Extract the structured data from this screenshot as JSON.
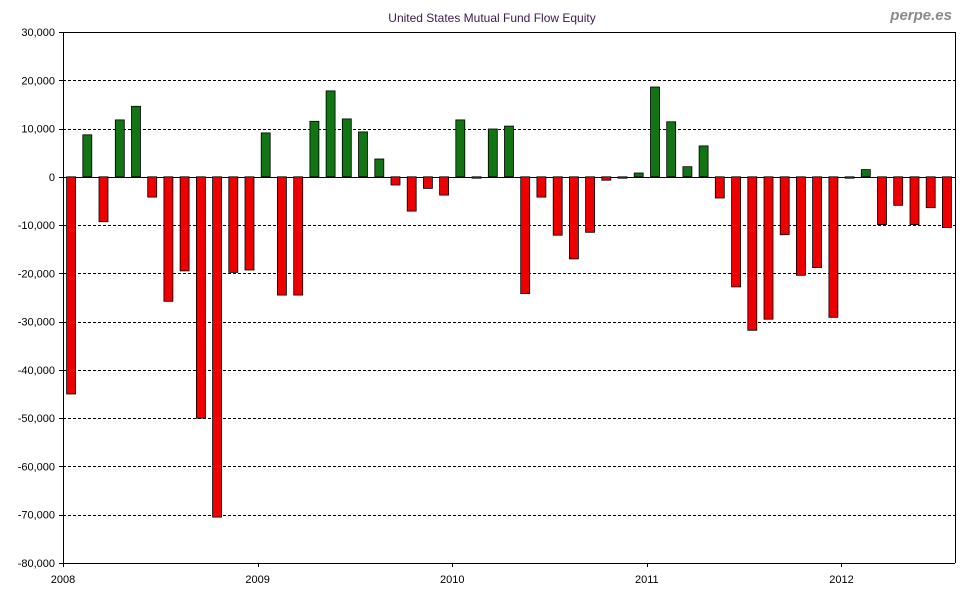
{
  "colors": {
    "positive": "#127412",
    "negative": "#ef0000",
    "title": "#3c1a4f",
    "brand": "#8a8a8a",
    "grid": "#000000"
  },
  "chart_data": {
    "type": "bar",
    "title": "United States Mutual Fund Flow Equity",
    "brand": "perpe.es",
    "xlabel": "",
    "ylabel": "",
    "ylim": [
      -80000,
      30000
    ],
    "y_ticks": [
      30000,
      20000,
      10000,
      0,
      -10000,
      -20000,
      -30000,
      -40000,
      -50000,
      -60000,
      -70000,
      -80000
    ],
    "y_tick_labels": [
      "30,000",
      "20,000",
      "10,000",
      "0",
      "-10,000",
      "-20,000",
      "-30,000",
      "-40,000",
      "-50,000",
      "-60,000",
      "-70,000",
      "-80,000"
    ],
    "x_tick_labels": [
      "2008",
      "2009",
      "2010",
      "2011",
      "2012"
    ],
    "x_tick_positions": [
      0,
      12,
      24,
      36,
      48
    ],
    "grid": true,
    "legend": "none",
    "positive_color": "green",
    "negative_color": "red",
    "categories": [
      "2008-01",
      "2008-02",
      "2008-03",
      "2008-04",
      "2008-05",
      "2008-06",
      "2008-07",
      "2008-08",
      "2008-09",
      "2008-10",
      "2008-11",
      "2008-12",
      "2009-01",
      "2009-02",
      "2009-03",
      "2009-04",
      "2009-05",
      "2009-06",
      "2009-07",
      "2009-08",
      "2009-09",
      "2009-10",
      "2009-11",
      "2009-12",
      "2010-01",
      "2010-02",
      "2010-03",
      "2010-04",
      "2010-05",
      "2010-06",
      "2010-07",
      "2010-08",
      "2010-09",
      "2010-10",
      "2010-11",
      "2010-12",
      "2011-01",
      "2011-02",
      "2011-03",
      "2011-04",
      "2011-05",
      "2011-06",
      "2011-07",
      "2011-08",
      "2011-09",
      "2011-10",
      "2011-11",
      "2011-12",
      "2012-01",
      "2012-02",
      "2012-03",
      "2012-04",
      "2012-05",
      "2012-06",
      "2012-07"
    ],
    "values": [
      -45000,
      8700,
      -9300,
      11800,
      14600,
      -4200,
      -25800,
      -19500,
      -50000,
      -70500,
      -19800,
      -19300,
      9100,
      -24500,
      -24500,
      11500,
      17800,
      12000,
      9300,
      3700,
      -1700,
      -7100,
      -2400,
      -3800,
      11800,
      -300,
      9900,
      10500,
      -24200,
      -4200,
      -12100,
      -17000,
      -11500,
      -700,
      -300,
      800,
      18600,
      11400,
      2100,
      6400,
      -4400,
      -22800,
      -31800,
      -29500,
      -12000,
      -20400,
      -18800,
      -29100,
      -300,
      1500,
      -9900,
      -5900,
      -9900,
      -6400,
      -10500
    ]
  }
}
